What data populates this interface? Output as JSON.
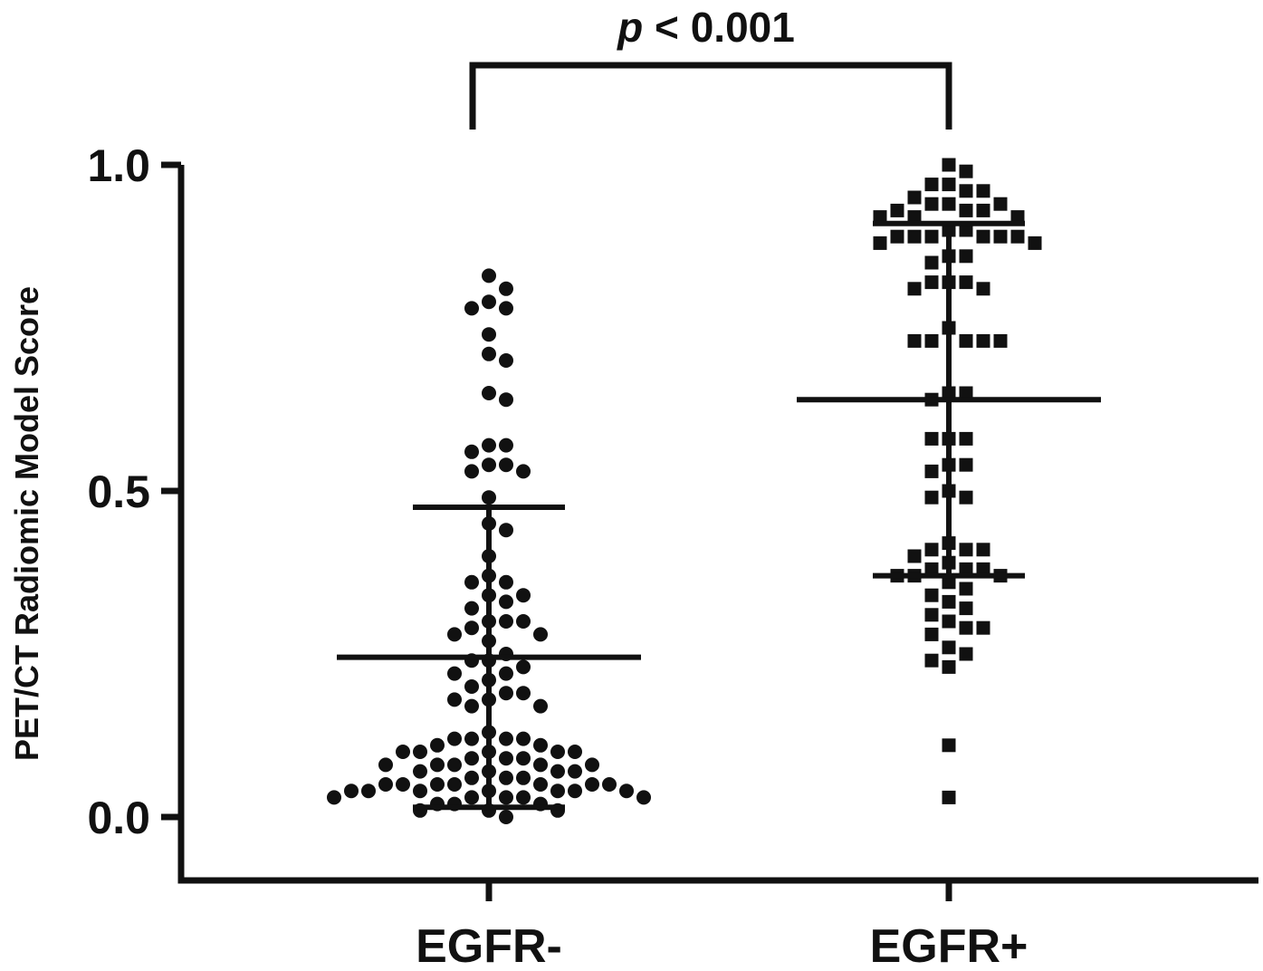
{
  "chart_data": {
    "type": "scatter",
    "subtype": "dot-plot with mean and SD bars",
    "ylabel": "PET/CT Radiomic Model Score",
    "ylim": [
      -0.09,
      1.0
    ],
    "yticks": [
      0.0,
      0.5,
      1.0
    ],
    "ytick_labels": [
      "0.0",
      "0.5",
      "1.0"
    ],
    "categories": [
      "EGFR-",
      "EGFR+"
    ],
    "significance": {
      "p_italic": "p",
      "rest": " < 0.001"
    },
    "series": [
      {
        "category": "EGFR-",
        "marker": "circle",
        "mean": 0.245,
        "sd_upper": 0.475,
        "sd_lower": 0.015,
        "points": [
          0.83,
          0.81,
          0.79,
          0.78,
          0.78,
          0.74,
          0.71,
          0.7,
          0.65,
          0.64,
          0.57,
          0.57,
          0.56,
          0.54,
          0.54,
          0.53,
          0.53,
          0.49,
          0.45,
          0.44,
          0.4,
          0.37,
          0.36,
          0.36,
          0.34,
          0.34,
          0.33,
          0.32,
          0.3,
          0.3,
          0.3,
          0.29,
          0.28,
          0.28,
          0.27,
          0.25,
          0.24,
          0.24,
          0.23,
          0.22,
          0.22,
          0.21,
          0.2,
          0.19,
          0.19,
          0.18,
          0.18,
          0.17,
          0.17,
          0.13,
          0.12,
          0.12,
          0.12,
          0.12,
          0.11,
          0.11,
          0.1,
          0.1,
          0.1,
          0.1,
          0.1,
          0.09,
          0.09,
          0.09,
          0.08,
          0.08,
          0.08,
          0.08,
          0.08,
          0.07,
          0.07,
          0.07,
          0.07,
          0.06,
          0.06,
          0.06,
          0.05,
          0.05,
          0.05,
          0.05,
          0.05,
          0.05,
          0.05,
          0.04,
          0.04,
          0.04,
          0.04,
          0.04,
          0.04,
          0.04,
          0.03,
          0.03,
          0.03,
          0.03,
          0.03,
          0.02,
          0.02,
          0.02,
          0.01,
          0.01,
          0.01,
          0.0
        ]
      },
      {
        "category": "EGFR+",
        "marker": "square",
        "mean": 0.64,
        "sd_upper": 0.91,
        "sd_lower": 0.37,
        "points": [
          1.0,
          0.99,
          0.97,
          0.97,
          0.96,
          0.96,
          0.95,
          0.94,
          0.94,
          0.94,
          0.93,
          0.93,
          0.93,
          0.92,
          0.92,
          0.92,
          0.9,
          0.9,
          0.89,
          0.89,
          0.89,
          0.89,
          0.89,
          0.89,
          0.88,
          0.88,
          0.86,
          0.86,
          0.85,
          0.82,
          0.82,
          0.82,
          0.81,
          0.81,
          0.75,
          0.73,
          0.73,
          0.73,
          0.73,
          0.73,
          0.65,
          0.65,
          0.64,
          0.58,
          0.58,
          0.58,
          0.54,
          0.54,
          0.53,
          0.5,
          0.49,
          0.49,
          0.42,
          0.41,
          0.41,
          0.41,
          0.4,
          0.39,
          0.38,
          0.38,
          0.38,
          0.37,
          0.37,
          0.37,
          0.36,
          0.35,
          0.34,
          0.33,
          0.32,
          0.31,
          0.3,
          0.29,
          0.29,
          0.28,
          0.26,
          0.25,
          0.24,
          0.23,
          0.11,
          0.03
        ]
      }
    ]
  }
}
